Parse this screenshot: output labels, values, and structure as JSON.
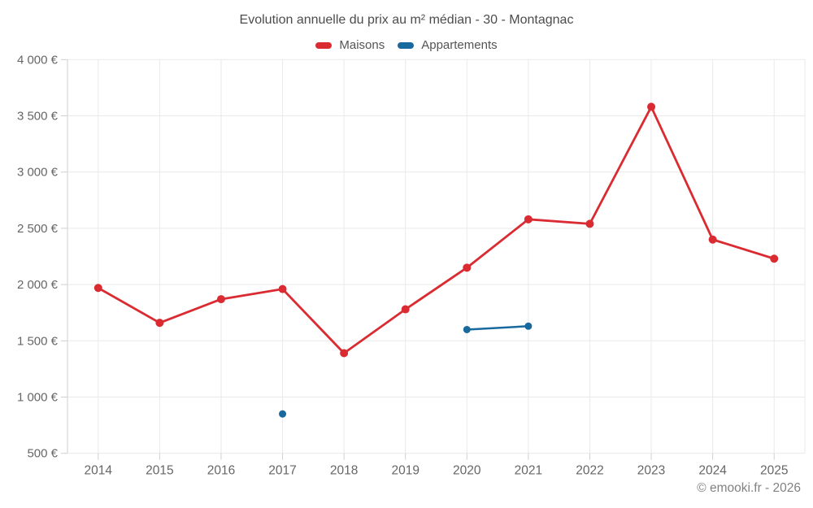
{
  "header": {
    "title": "Evolution annuelle du prix au m² médian - 30 - Montagnac"
  },
  "legend": {
    "items": [
      {
        "label": "Maisons",
        "color": "#da2b32"
      },
      {
        "label": "Appartements",
        "color": "#17699e"
      }
    ]
  },
  "footer": {
    "copyright": "© emooki.fr - 2026"
  },
  "chart_data": {
    "type": "line",
    "title": "Evolution annuelle du prix au m² médian - 30 - Montagnac",
    "categories": [
      "2014",
      "2015",
      "2016",
      "2017",
      "2018",
      "2019",
      "2020",
      "2021",
      "2022",
      "2023",
      "2024",
      "2025"
    ],
    "series": [
      {
        "name": "Maisons",
        "color": "#da2b32",
        "values": [
          1970,
          1660,
          1870,
          1960,
          1390,
          1780,
          2150,
          2580,
          2540,
          3580,
          2400,
          2230
        ]
      },
      {
        "name": "Appartements",
        "color": "#17699e",
        "values": [
          null,
          null,
          null,
          850,
          null,
          null,
          1600,
          1630,
          null,
          null,
          null,
          null
        ]
      }
    ],
    "xlabel": "",
    "ylabel": "",
    "ylim": [
      500,
      4000
    ],
    "y_ticks": [
      {
        "value": 500,
        "label": "500 €"
      },
      {
        "value": 1000,
        "label": "1 000 €"
      },
      {
        "value": 1500,
        "label": "1 500 €"
      },
      {
        "value": 2000,
        "label": "2 000 €"
      },
      {
        "value": 2500,
        "label": "2 500 €"
      },
      {
        "value": 3000,
        "label": "3 000 €"
      },
      {
        "value": 3500,
        "label": "3 500 €"
      },
      {
        "value": 4000,
        "label": "4 000 €"
      }
    ],
    "grid": true,
    "legend_position": "top"
  }
}
